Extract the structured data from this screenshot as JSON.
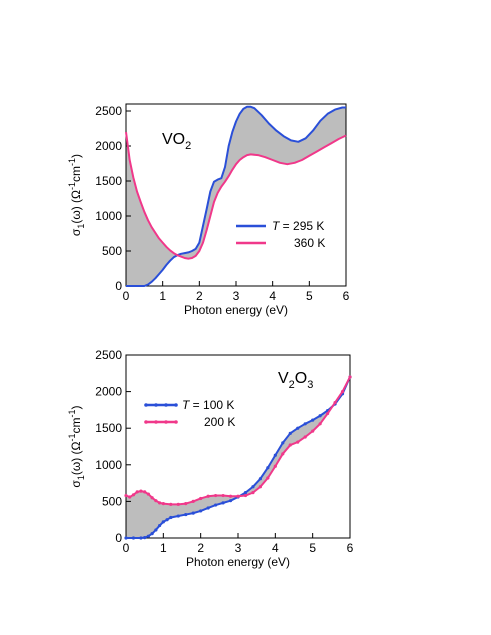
{
  "colors": {
    "series_blue": "#2a4fd8",
    "series_pink": "#f0388a",
    "fill_gray": "#bdbdbd",
    "axis": "#000000"
  },
  "chart_data": [
    {
      "type": "line",
      "material": {
        "base": "VO",
        "sub": "2",
        "base2": "",
        "sub2": ""
      },
      "xlabel": "Photon energy (eV)",
      "ylabel": {
        "prefix": "σ",
        "sub": "1",
        "mid": "(ω)  (Ω",
        "sup1": "-1",
        "mid2": "cm",
        "sup2": "-1",
        "suffix": ")"
      },
      "xlim": [
        0,
        6
      ],
      "ylim": [
        0,
        2600
      ],
      "xticks": [
        0,
        1,
        2,
        3,
        4,
        5,
        6
      ],
      "yticks": [
        0,
        500,
        1000,
        1500,
        2000,
        2500
      ],
      "legend": {
        "position": "right",
        "t_symbol": "T",
        "entries": [
          {
            "text": " = 295 K",
            "show_t": true
          },
          {
            "text": "360 K",
            "show_t": false
          }
        ]
      },
      "series": [
        {
          "legend_index": 0,
          "color_key": "series_blue",
          "marker": false,
          "x": [
            0.0,
            0.3,
            0.5,
            0.6,
            0.7,
            0.8,
            0.9,
            1.0,
            1.1,
            1.2,
            1.3,
            1.4,
            1.5,
            1.6,
            1.7,
            1.8,
            1.9,
            2.0,
            2.1,
            2.2,
            2.3,
            2.4,
            2.5,
            2.6,
            2.7,
            2.8,
            2.9,
            3.0,
            3.1,
            3.2,
            3.3,
            3.4,
            3.5,
            3.7,
            3.9,
            4.1,
            4.3,
            4.5,
            4.7,
            4.9,
            5.1,
            5.3,
            5.5,
            5.7,
            5.9,
            6.0
          ],
          "values": [
            0,
            0,
            0,
            20,
            60,
            110,
            170,
            230,
            300,
            360,
            410,
            440,
            460,
            470,
            480,
            500,
            530,
            620,
            860,
            1100,
            1350,
            1490,
            1520,
            1540,
            1700,
            2000,
            2200,
            2350,
            2460,
            2530,
            2560,
            2560,
            2540,
            2440,
            2320,
            2220,
            2140,
            2080,
            2060,
            2110,
            2220,
            2360,
            2460,
            2520,
            2550,
            2550
          ]
        },
        {
          "legend_index": 1,
          "color_key": "series_pink",
          "marker": false,
          "x": [
            0.0,
            0.1,
            0.2,
            0.3,
            0.4,
            0.5,
            0.6,
            0.7,
            0.8,
            0.9,
            1.0,
            1.1,
            1.2,
            1.3,
            1.4,
            1.5,
            1.6,
            1.7,
            1.8,
            1.9,
            2.0,
            2.1,
            2.2,
            2.3,
            2.4,
            2.5,
            2.6,
            2.7,
            2.8,
            2.9,
            3.0,
            3.1,
            3.2,
            3.3,
            3.4,
            3.6,
            3.8,
            4.0,
            4.2,
            4.4,
            4.6,
            4.8,
            5.0,
            5.2,
            5.4,
            5.6,
            5.8,
            6.0
          ],
          "values": [
            2200,
            1800,
            1550,
            1350,
            1200,
            1060,
            940,
            840,
            760,
            680,
            620,
            560,
            510,
            470,
            440,
            420,
            400,
            390,
            400,
            430,
            500,
            620,
            800,
            1000,
            1200,
            1330,
            1420,
            1490,
            1570,
            1660,
            1740,
            1800,
            1840,
            1870,
            1880,
            1870,
            1840,
            1800,
            1760,
            1740,
            1760,
            1800,
            1860,
            1920,
            1980,
            2040,
            2100,
            2150
          ]
        }
      ]
    },
    {
      "type": "line",
      "material": {
        "base": "V",
        "sub": "2",
        "base2": "O",
        "sub2": "3"
      },
      "xlabel": "Photon energy (eV)",
      "ylabel": {
        "prefix": "σ",
        "sub": "1",
        "mid": "(ω)  (Ω",
        "sup1": "-1",
        "mid2": "cm",
        "sup2": "-1",
        "suffix": ")"
      },
      "xlim": [
        0,
        6
      ],
      "ylim": [
        0,
        2500
      ],
      "xticks": [
        0,
        1,
        2,
        3,
        4,
        5,
        6
      ],
      "yticks": [
        0,
        500,
        1000,
        1500,
        2000,
        2500
      ],
      "legend": {
        "position": "top-left",
        "t_symbol": "T",
        "entries": [
          {
            "text": " = 100 K",
            "show_t": true
          },
          {
            "text": "200 K",
            "show_t": false
          }
        ]
      },
      "series": [
        {
          "legend_index": 0,
          "color_key": "series_blue",
          "marker": true,
          "x": [
            0.0,
            0.2,
            0.4,
            0.5,
            0.6,
            0.7,
            0.8,
            0.9,
            1.0,
            1.1,
            1.2,
            1.4,
            1.6,
            1.8,
            2.0,
            2.2,
            2.4,
            2.6,
            2.8,
            3.0,
            3.2,
            3.4,
            3.6,
            3.8,
            4.0,
            4.2,
            4.4,
            4.6,
            4.8,
            5.0,
            5.2,
            5.4,
            5.6,
            5.8,
            6.0
          ],
          "values": [
            0,
            0,
            0,
            5,
            25,
            60,
            110,
            170,
            220,
            250,
            280,
            300,
            320,
            340,
            370,
            410,
            450,
            480,
            510,
            560,
            620,
            700,
            810,
            960,
            1130,
            1300,
            1430,
            1500,
            1560,
            1610,
            1670,
            1740,
            1830,
            1970,
            2200
          ]
        },
        {
          "legend_index": 1,
          "color_key": "series_pink",
          "marker": true,
          "x": [
            0.0,
            0.1,
            0.2,
            0.3,
            0.4,
            0.5,
            0.6,
            0.7,
            0.8,
            0.9,
            1.0,
            1.2,
            1.4,
            1.6,
            1.8,
            2.0,
            2.2,
            2.4,
            2.6,
            2.8,
            3.0,
            3.2,
            3.4,
            3.6,
            3.8,
            4.0,
            4.2,
            4.4,
            4.6,
            4.8,
            5.0,
            5.2,
            5.4,
            5.6,
            5.8,
            6.0
          ],
          "values": [
            580,
            560,
            590,
            630,
            640,
            630,
            600,
            550,
            510,
            480,
            470,
            460,
            460,
            470,
            500,
            540,
            570,
            580,
            580,
            570,
            570,
            580,
            620,
            700,
            820,
            980,
            1150,
            1270,
            1310,
            1380,
            1460,
            1560,
            1700,
            1850,
            2000,
            2200
          ]
        }
      ]
    }
  ]
}
